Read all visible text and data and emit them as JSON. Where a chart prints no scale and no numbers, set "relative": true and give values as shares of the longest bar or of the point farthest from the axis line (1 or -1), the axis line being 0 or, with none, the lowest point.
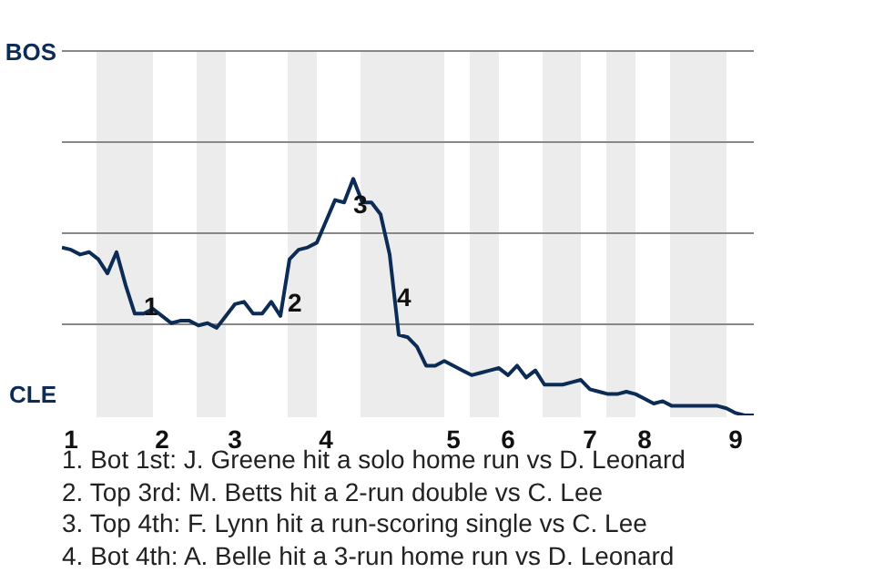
{
  "chart_data": {
    "type": "line",
    "relative": true,
    "categories": [
      null,
      "1",
      null,
      null,
      null,
      null,
      null,
      null,
      null,
      null,
      null,
      "2",
      null,
      null,
      null,
      null,
      null,
      null,
      null,
      "3",
      null,
      null,
      null,
      null,
      null,
      null,
      null,
      null,
      null,
      "4",
      null,
      null,
      null,
      null,
      null,
      null,
      null,
      null,
      null,
      null,
      null,
      null,
      null,
      "5",
      null,
      null,
      null,
      null,
      null,
      "6",
      null,
      null,
      null,
      null,
      null,
      null,
      null,
      null,
      "7",
      null,
      null,
      null,
      null,
      null,
      "8",
      null,
      null,
      null,
      null,
      null,
      null,
      null,
      null,
      null,
      "9",
      null,
      null
    ],
    "series": [
      {
        "color": "#0c2c56",
        "values": [
          0.71,
          0.7,
          0.68,
          0.69,
          0.66,
          0.6,
          0.69,
          0.55,
          0.43,
          0.43,
          0.45,
          0.42,
          0.39,
          0.4,
          0.4,
          0.38,
          0.39,
          0.37,
          0.42,
          0.47,
          0.48,
          0.43,
          0.43,
          0.48,
          0.42,
          0.66,
          0.7,
          0.71,
          0.73,
          0.82,
          0.91,
          0.9,
          1,
          0.9,
          0.9,
          0.85,
          0.68,
          0.34,
          0.33,
          0.29,
          0.21,
          0.21,
          0.23,
          0.21,
          0.19,
          0.17,
          0.18,
          0.19,
          0.2,
          0.17,
          0.21,
          0.16,
          0.19,
          0.13,
          0.13,
          0.13,
          0.14,
          0.15,
          0.11,
          0.1,
          0.09,
          0.09,
          0.1,
          0.09,
          0.07,
          0.05,
          0.06,
          0.04,
          0.04,
          0.04,
          0.04,
          0.04,
          0.04,
          0.03,
          0.01,
          0,
          0
        ]
      }
    ],
    "ref_lines": [
      {
        "axis": "y",
        "value": 0.385,
        "color": "#888888"
      },
      {
        "axis": "y",
        "value": 0.77,
        "color": "#888888"
      },
      {
        "axis": "y",
        "value": 1.155,
        "color": "#888888"
      },
      {
        "axis": "y",
        "value": 1.54,
        "color": "#888888"
      }
    ],
    "marker": "none",
    "line_style": "solid",
    "annotations": [
      "BOS",
      "CLE",
      "1",
      "2",
      "3",
      "4",
      "1. Bot 1st: J. Greene hit a solo home run vs D. Leonard",
      "2. Top 3rd: M. Betts hit a 2-run double vs C. Lee",
      "3. Top 4th: F. Lynn hit a run-scoring single vs C. Lee",
      "4. Bot 4th: A. Belle hit a 3-run home run vs D. Leonard"
    ]
  }
}
